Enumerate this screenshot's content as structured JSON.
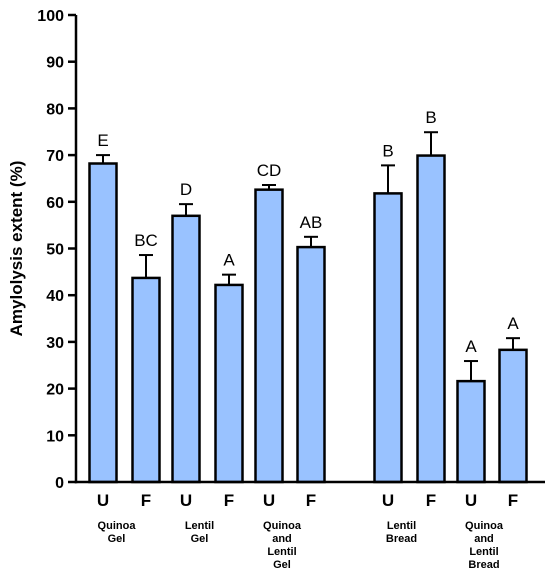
{
  "chart_data": {
    "type": "bar",
    "title": "",
    "xlabel": "",
    "ylabel": "Amylolysis extent (%)",
    "ylim": [
      0,
      100
    ],
    "yticks": [
      0,
      10,
      20,
      30,
      40,
      50,
      60,
      70,
      80,
      90,
      100
    ],
    "grid": false,
    "groups": [
      {
        "label": [
          "Quinoa",
          "Gel"
        ],
        "bars": [
          0,
          1
        ]
      },
      {
        "label": [
          "Lentil",
          "Gel"
        ],
        "bars": [
          2,
          3
        ]
      },
      {
        "label": [
          "Quinoa",
          "and",
          "Lentil",
          "Gel"
        ],
        "bars": [
          4,
          5
        ]
      },
      {
        "label": [
          "Lentil",
          "Bread"
        ],
        "bars": [
          6,
          7
        ]
      },
      {
        "label": [
          "Quinoa",
          "and",
          "Lentil",
          "Bread"
        ],
        "bars": [
          8,
          9
        ]
      }
    ],
    "bars": [
      {
        "category": "U",
        "value": 68.2,
        "error": 1.8,
        "sig": "E"
      },
      {
        "category": "F",
        "value": 43.7,
        "error": 4.9,
        "sig": "BC"
      },
      {
        "category": "U",
        "value": 57.0,
        "error": 2.5,
        "sig": "D"
      },
      {
        "category": "F",
        "value": 42.2,
        "error": 2.2,
        "sig": "A"
      },
      {
        "category": "U",
        "value": 62.6,
        "error": 1.0,
        "sig": "CD"
      },
      {
        "category": "F",
        "value": 50.3,
        "error": 2.2,
        "sig": "AB"
      },
      {
        "category": "U",
        "value": 61.8,
        "error": 6.0,
        "sig": "B"
      },
      {
        "category": "F",
        "value": 69.9,
        "error": 5.0,
        "sig": "B"
      },
      {
        "category": "U",
        "value": 21.6,
        "error": 4.3,
        "sig": "A"
      },
      {
        "category": "F",
        "value": 28.3,
        "error": 2.5,
        "sig": "A"
      }
    ],
    "bar_color": "#99c2ff"
  }
}
